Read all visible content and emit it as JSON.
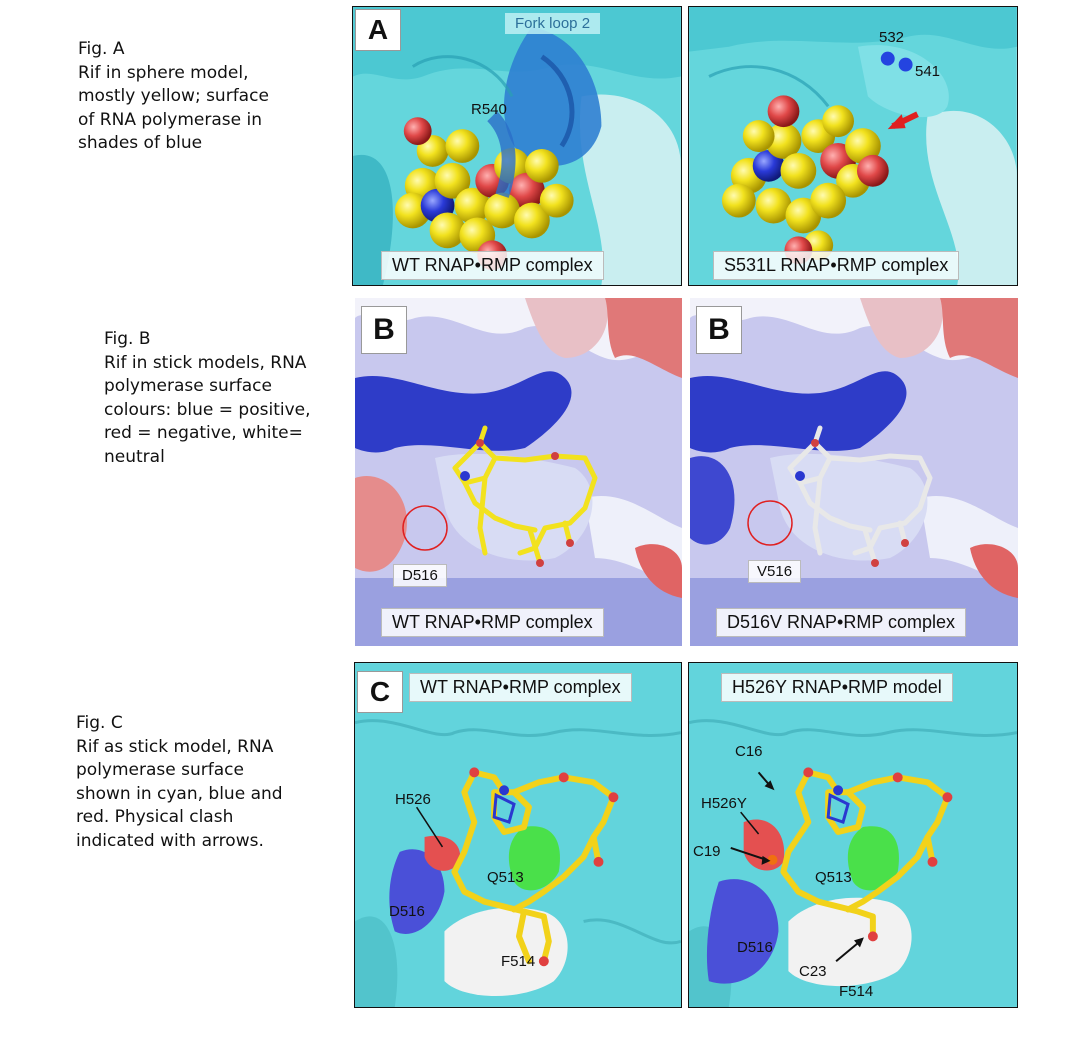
{
  "captions": {
    "a": [
      "Fig. A",
      "Rif in sphere model,",
      "mostly yellow; surface",
      "of RNA polymerase in",
      "shades of blue"
    ],
    "b": [
      "Fig. B",
      "Rif in stick models, RNA",
      "polymerase surface",
      "colours: blue = positive,",
      "red = negative, white=",
      "neutral"
    ],
    "c": [
      "Fig. C",
      "Rif as stick model, RNA",
      "polymerase surface",
      "shown in cyan, blue and",
      "red. Physical clash",
      "indicated with arrows."
    ]
  },
  "panel_a": {
    "letter": "A",
    "left": {
      "label": "WT RNAP•RMP complex",
      "fork": "Fork loop 2",
      "residue": "R540"
    },
    "right": {
      "label": "S531L RNAP•RMP complex",
      "res1": "532",
      "res2": "541"
    }
  },
  "panel_b": {
    "letter": "B",
    "left": {
      "label": "WT RNAP•RMP complex",
      "residue": "D516"
    },
    "right": {
      "label": "D516V RNAP•RMP complex",
      "residue": "V516"
    }
  },
  "panel_c": {
    "letter": "C",
    "left": {
      "label": "WT RNAP•RMP complex",
      "h": "H526",
      "q": "Q513",
      "d": "D516",
      "f": "F514"
    },
    "right": {
      "label": "H526Y RNAP•RMP model",
      "c16": "C16",
      "h": "H526Y",
      "c19": "C19",
      "q": "Q513",
      "d": "D516",
      "c23": "C23",
      "f": "F514"
    }
  },
  "colors": {
    "cyan": "#5fd6dd",
    "blue": "#3a6fd0",
    "rif_yellow": "#f2e21e",
    "red": "#e04848",
    "positive": "#3b47d6",
    "negative": "#e06060",
    "green": "#3ed23e"
  }
}
